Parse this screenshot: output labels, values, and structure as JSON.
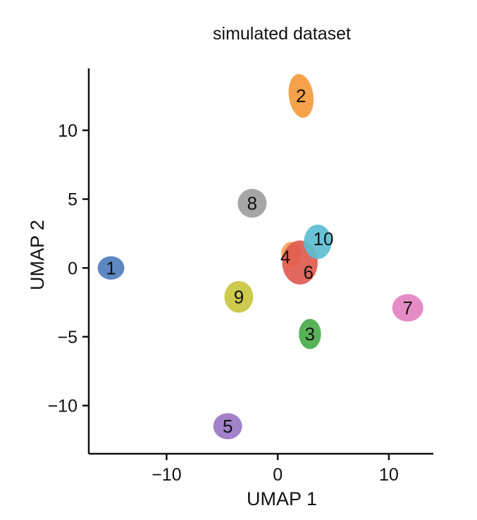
{
  "chart_data": {
    "type": "scatter",
    "title": "simulated dataset",
    "xlabel": "UMAP 1",
    "ylabel": "UMAP 2",
    "xlim": [
      -17,
      14
    ],
    "ylim": [
      -13.5,
      14.5
    ],
    "xticks": [
      -10,
      0,
      10
    ],
    "yticks": [
      -10,
      -5,
      0,
      5,
      10
    ],
    "grid": false,
    "legend": "none",
    "clusters": [
      {
        "label": "1",
        "x": -15.0,
        "y": 0.0,
        "color": "#4f7ebf",
        "rx": 1.2,
        "ry": 0.85,
        "angle": 0
      },
      {
        "label": "2",
        "x": 2.1,
        "y": 12.5,
        "color": "#f59a3c",
        "rx": 1.1,
        "ry": 1.6,
        "angle": -8
      },
      {
        "label": "3",
        "x": 2.9,
        "y": -4.8,
        "color": "#4aac4a",
        "rx": 1.0,
        "ry": 1.1,
        "angle": 0
      },
      {
        "label": "4",
        "x": 1.2,
        "y": 1.0,
        "color": "#f5a561",
        "rx": 0.9,
        "ry": 0.9,
        "angle": 0
      },
      {
        "label": "5",
        "x": -4.5,
        "y": -11.5,
        "color": "#9b77c4",
        "rx": 1.3,
        "ry": 0.95,
        "angle": 0
      },
      {
        "label": "6",
        "x": 2.0,
        "y": 0.4,
        "color": "#df5a4e",
        "rx": 1.6,
        "ry": 1.6,
        "angle": 0
      },
      {
        "label": "7",
        "x": 11.7,
        "y": -2.9,
        "color": "#e382c1",
        "rx": 1.4,
        "ry": 1.0,
        "angle": 0
      },
      {
        "label": "8",
        "x": -2.3,
        "y": 4.7,
        "color": "#9e9e9e",
        "rx": 1.3,
        "ry": 1.05,
        "angle": 0
      },
      {
        "label": "9",
        "x": -3.5,
        "y": -2.1,
        "color": "#c9c63f",
        "rx": 1.3,
        "ry": 1.15,
        "angle": 0
      },
      {
        "label": "10",
        "x": 3.6,
        "y": 1.9,
        "color": "#5bbfd0",
        "rx": 1.25,
        "ry": 1.25,
        "angle": 0
      }
    ]
  }
}
